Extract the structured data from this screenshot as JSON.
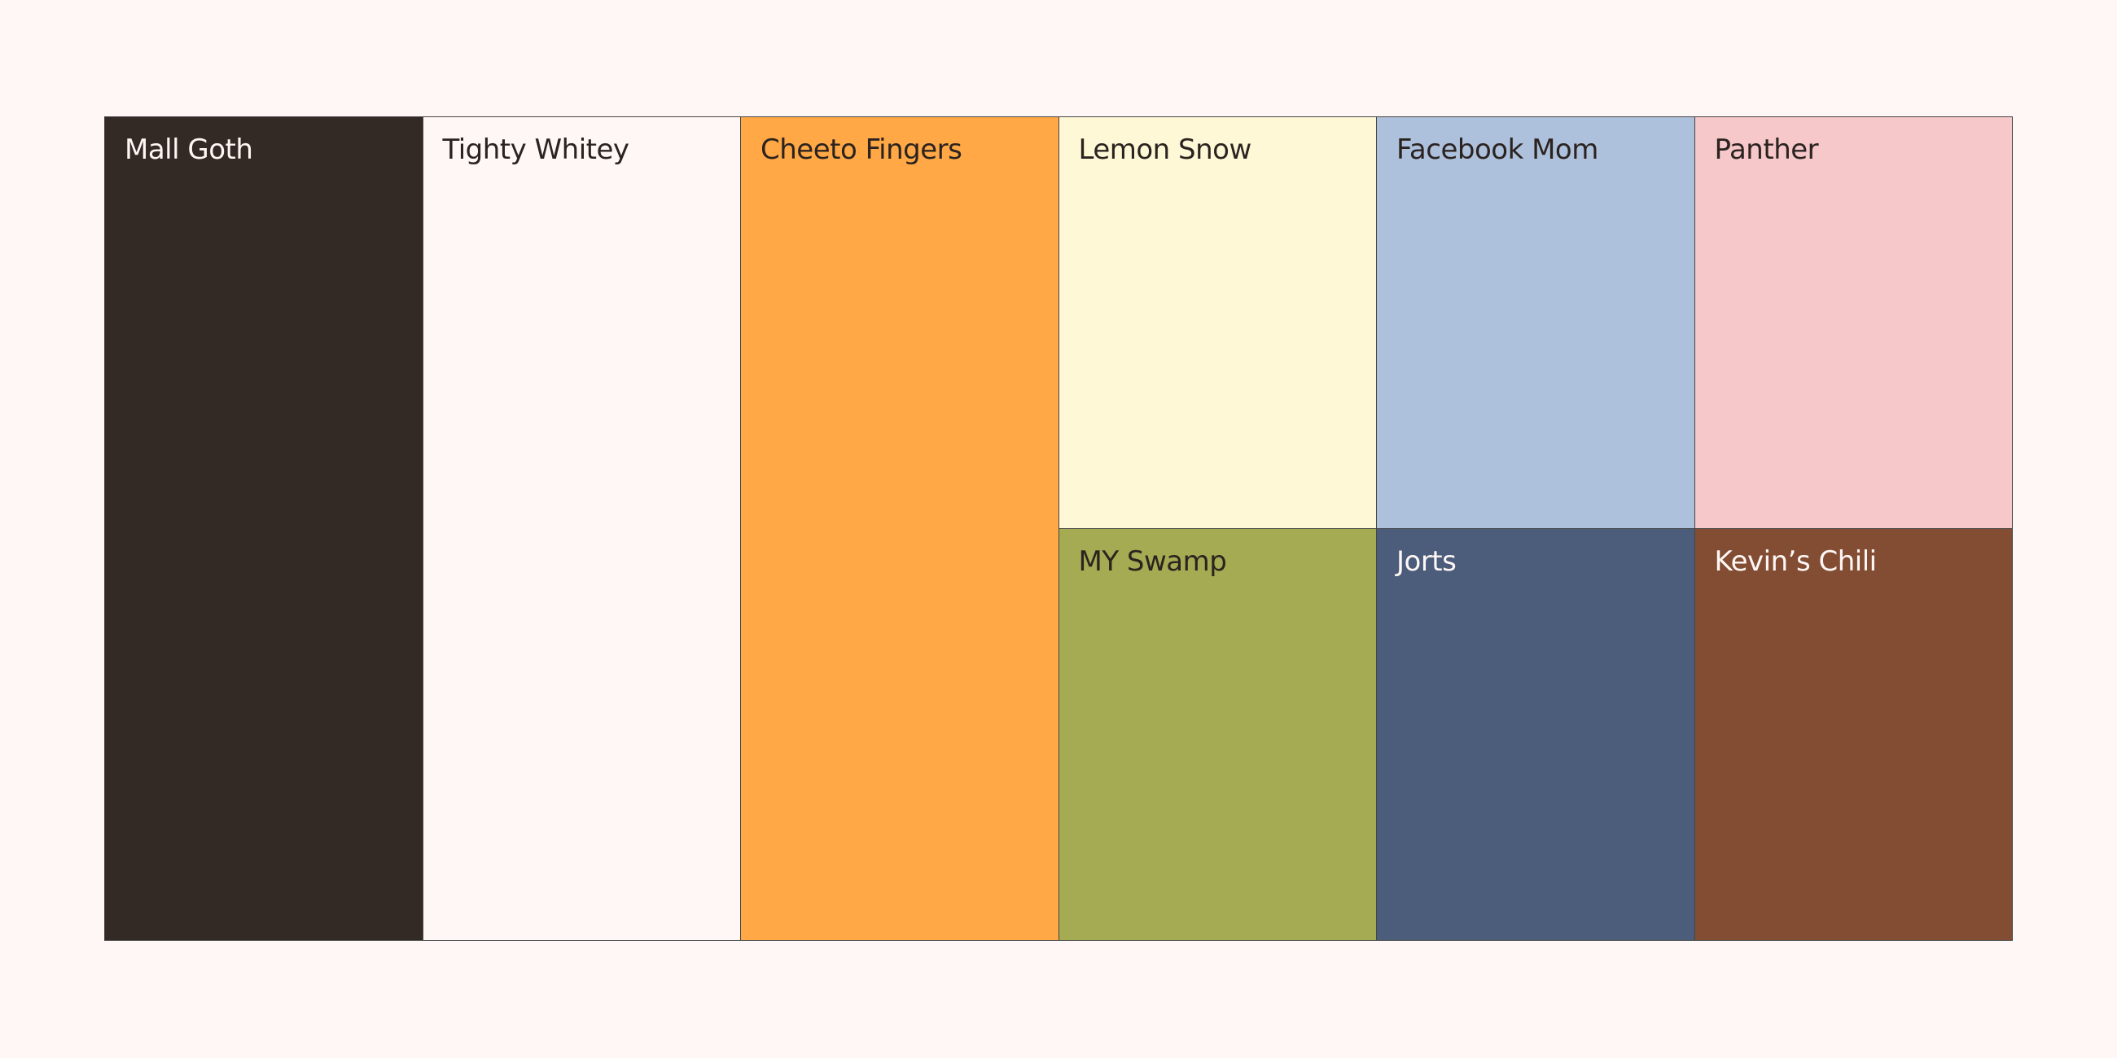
{
  "palette": {
    "background": "#fff7f5",
    "columns": [
      {
        "swatches": [
          {
            "name": "Mall Goth",
            "color": "#332925"
          }
        ]
      },
      {
        "swatches": [
          {
            "name": "Tighty Whitey",
            "color": "#fff7f5"
          }
        ]
      },
      {
        "swatches": [
          {
            "name": "Cheeto Fingers",
            "color": "#ffa845"
          }
        ]
      },
      {
        "swatches": [
          {
            "name": "Lemon Snow",
            "color": "#fff8d6"
          },
          {
            "name": "MY Swamp",
            "color": "#a5ab52"
          }
        ]
      },
      {
        "swatches": [
          {
            "name": "Facebook Mom",
            "color": "#adc0dc"
          },
          {
            "name": "Jorts",
            "color": "#4b5d7a"
          }
        ]
      },
      {
        "swatches": [
          {
            "name": "Panther",
            "color": "#f6c8ca"
          },
          {
            "name": "Kevin’s Chili",
            "color": "#824d33"
          }
        ]
      }
    ]
  }
}
